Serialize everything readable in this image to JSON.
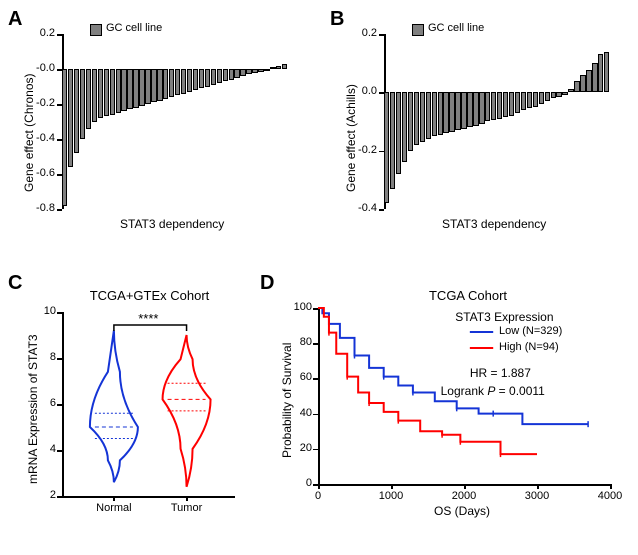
{
  "panelA": {
    "label": "A",
    "legend": "GC cell line",
    "legend_color": "#808080",
    "ylabel": "Gene effect (Chronos)",
    "xlabel": "STAT3 dependency",
    "ylim": [
      -0.8,
      0.2
    ],
    "ytick_step": 0.2,
    "bar_color": "#808080",
    "bar_border": "#000000",
    "values": [
      -0.78,
      -0.56,
      -0.48,
      -0.4,
      -0.34,
      -0.3,
      -0.28,
      -0.27,
      -0.26,
      -0.25,
      -0.24,
      -0.23,
      -0.22,
      -0.21,
      -0.2,
      -0.19,
      -0.18,
      -0.17,
      -0.16,
      -0.15,
      -0.14,
      -0.13,
      -0.12,
      -0.11,
      -0.1,
      -0.09,
      -0.08,
      -0.07,
      -0.06,
      -0.05,
      -0.04,
      -0.03,
      -0.02,
      -0.015,
      -0.01,
      0.01,
      0.02,
      0.03
    ]
  },
  "panelB": {
    "label": "B",
    "legend": "GC cell line",
    "legend_color": "#808080",
    "ylabel": "Gene effect (Achills)",
    "xlabel": "STAT3 dependency",
    "ylim": [
      -0.4,
      0.2
    ],
    "ytick_step": 0.2,
    "bar_color": "#808080",
    "bar_border": "#000000",
    "values": [
      -0.38,
      -0.33,
      -0.28,
      -0.24,
      -0.2,
      -0.18,
      -0.17,
      -0.16,
      -0.15,
      -0.145,
      -0.14,
      -0.135,
      -0.13,
      -0.125,
      -0.12,
      -0.115,
      -0.11,
      -0.1,
      -0.095,
      -0.09,
      -0.085,
      -0.08,
      -0.07,
      -0.06,
      -0.055,
      -0.05,
      -0.04,
      -0.03,
      -0.02,
      -0.015,
      -0.01,
      0.01,
      0.04,
      0.06,
      0.075,
      0.1,
      0.13,
      0.14
    ]
  },
  "panelC": {
    "label": "C",
    "title": "TCGA+GTEx Cohort",
    "ylabel": "mRNA Expression of STAT3",
    "categories": [
      "Normal",
      "Tumor"
    ],
    "sig": "****",
    "ylim": [
      2,
      10
    ],
    "ytick_step": 2,
    "colors": [
      "#1434d6",
      "#ff0000"
    ],
    "medians": [
      5.0,
      6.2
    ],
    "q1": [
      4.5,
      5.7
    ],
    "q3": [
      5.6,
      6.9
    ]
  },
  "panelD": {
    "label": "D",
    "title": "TCGA Cohort",
    "subtitle": "STAT3 Expression",
    "ylabel": "Probability of Survival",
    "xlabel": "OS (Days)",
    "ylim": [
      0,
      100
    ],
    "ytick_step": 20,
    "xlim": [
      0,
      4000
    ],
    "xtick_step": 1000,
    "low_color": "#1434d6",
    "high_color": "#ff0000",
    "low_label": "Low (N=329)",
    "high_label": "High (N=94)",
    "hr": "HR = 1.887",
    "logrank": "Logrank P = 0.0011",
    "low_curve": [
      [
        0,
        100
      ],
      [
        60,
        97
      ],
      [
        150,
        91
      ],
      [
        300,
        83
      ],
      [
        500,
        73
      ],
      [
        700,
        66
      ],
      [
        900,
        61
      ],
      [
        1100,
        56
      ],
      [
        1300,
        52
      ],
      [
        1600,
        47
      ],
      [
        1900,
        43
      ],
      [
        2200,
        40
      ],
      [
        2400,
        40
      ],
      [
        2800,
        34
      ],
      [
        3700,
        34
      ]
    ],
    "high_curve": [
      [
        0,
        100
      ],
      [
        80,
        95
      ],
      [
        150,
        86
      ],
      [
        250,
        74
      ],
      [
        400,
        61
      ],
      [
        550,
        52
      ],
      [
        700,
        46
      ],
      [
        900,
        41
      ],
      [
        1100,
        36
      ],
      [
        1400,
        30
      ],
      [
        1700,
        28
      ],
      [
        1950,
        28
      ],
      [
        1950,
        24
      ],
      [
        2200,
        24
      ],
      [
        2500,
        17
      ],
      [
        3000,
        17
      ]
    ]
  }
}
